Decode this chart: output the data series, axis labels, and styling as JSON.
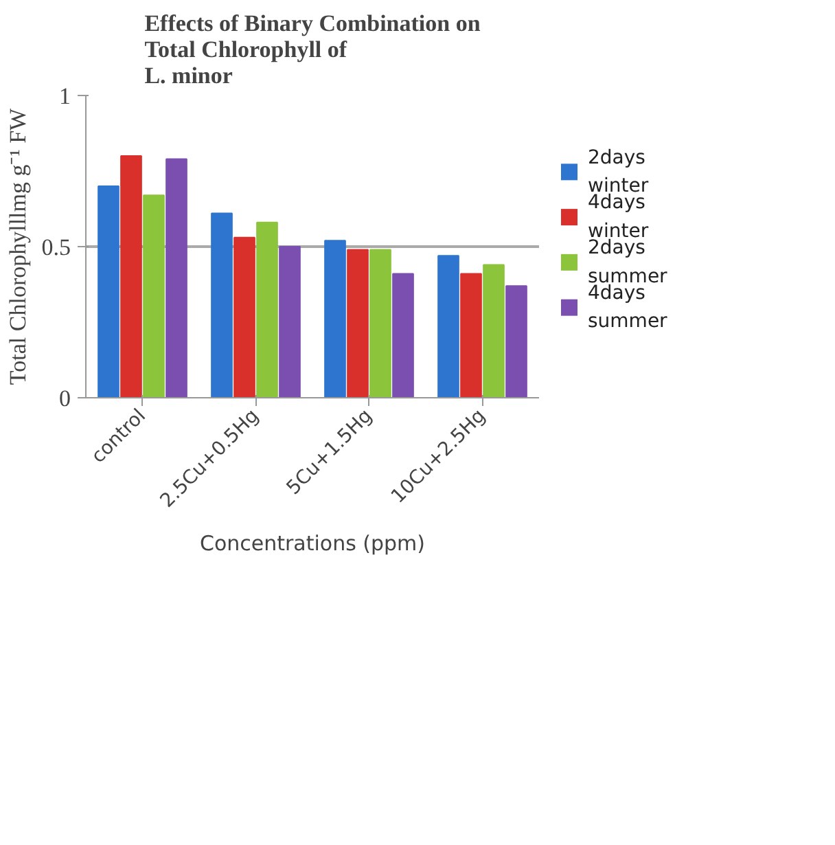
{
  "chart_data": {
    "type": "bar",
    "title": "Effects of Binary Combination on\nTotal Chlorophyll of\nL. minor",
    "xlabel": "Concentrations (ppm)",
    "ylabel": "Total Chlorophylllmg g⁻¹ FW",
    "categories": [
      "control",
      "2.5Cu+0.5Hg",
      "5Cu+1.5Hg",
      "10Cu+2.5Hg"
    ],
    "series": [
      {
        "name": "2days winter",
        "color": "#2e75cf",
        "values": [
          0.7,
          0.61,
          0.52,
          0.47
        ]
      },
      {
        "name": "4days winter",
        "color": "#d9302c",
        "values": [
          0.8,
          0.53,
          0.49,
          0.41
        ]
      },
      {
        "name": "2days summer",
        "color": "#8cc43c",
        "values": [
          0.67,
          0.58,
          0.49,
          0.44
        ]
      },
      {
        "name": "4days summer",
        "color": "#7b4fb0",
        "values": [
          0.79,
          0.5,
          0.41,
          0.37
        ]
      }
    ],
    "ylim": [
      0,
      1
    ],
    "yticks": [
      0,
      0.5,
      1
    ],
    "grid": "y",
    "legend": "right"
  }
}
